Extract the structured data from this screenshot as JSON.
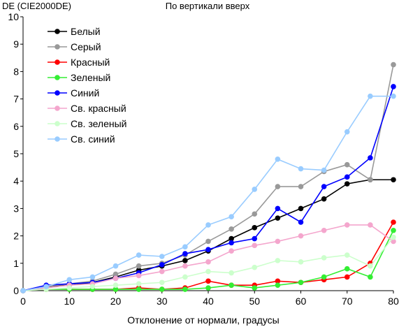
{
  "chart_data": {
    "type": "line",
    "title": "По вертикали вверх",
    "xlabel": "Отклонение от нормали, градусы",
    "ylabel": "DE (CIE2000DE)",
    "xlim": [
      0,
      80
    ],
    "ylim": [
      0,
      10
    ],
    "x_ticks": [
      0,
      10,
      20,
      30,
      40,
      50,
      60,
      70,
      80
    ],
    "y_ticks": [
      0,
      1,
      2,
      3,
      4,
      5,
      6,
      7,
      8,
      9,
      10
    ],
    "grid": false,
    "legend_position": "top-left",
    "x": [
      0,
      5,
      10,
      15,
      20,
      25,
      30,
      35,
      40,
      45,
      50,
      55,
      60,
      65,
      70,
      75,
      80
    ],
    "series": [
      {
        "name": "Белый",
        "color": "#000000",
        "values": [
          0,
          0.15,
          0.2,
          0.3,
          0.5,
          0.75,
          0.9,
          1.1,
          1.45,
          1.9,
          2.3,
          2.65,
          3.0,
          3.35,
          3.9,
          4.05,
          4.05
        ]
      },
      {
        "name": "Серый",
        "color": "#999999",
        "values": [
          0,
          0.15,
          0.25,
          0.35,
          0.6,
          0.9,
          1.0,
          1.3,
          1.8,
          2.25,
          2.8,
          3.8,
          3.8,
          4.35,
          4.6,
          4.05,
          8.25
        ]
      },
      {
        "name": "Красный",
        "color": "#ff0000",
        "values": [
          0,
          0.05,
          0.05,
          0.05,
          0.05,
          0.1,
          0.05,
          0.1,
          0.35,
          0.2,
          0.2,
          0.35,
          0.3,
          0.4,
          0.5,
          1.0,
          2.5
        ]
      },
      {
        "name": "Зеленый",
        "color": "#33ee33",
        "values": [
          0,
          0.05,
          0.05,
          0.05,
          0.05,
          0.05,
          0.05,
          0.05,
          0.1,
          0.2,
          0.1,
          0.2,
          0.3,
          0.5,
          0.8,
          0.5,
          2.2
        ]
      },
      {
        "name": "Синий",
        "color": "#0000ff",
        "values": [
          0,
          0.2,
          0.25,
          0.3,
          0.45,
          0.65,
          0.95,
          1.35,
          1.5,
          1.75,
          1.9,
          3.0,
          2.5,
          3.8,
          4.15,
          4.85,
          7.45
        ]
      },
      {
        "name": "Св. красный",
        "color": "#f4a6cd",
        "values": [
          0,
          0.1,
          0.2,
          0.25,
          0.45,
          0.55,
          0.7,
          0.9,
          1.05,
          1.45,
          1.65,
          1.8,
          2.0,
          2.2,
          2.4,
          2.4,
          1.8
        ]
      },
      {
        "name": "Св. зеленый",
        "color": "#ccffcc",
        "values": [
          0,
          0.05,
          0.1,
          0.15,
          0.2,
          0.25,
          0.3,
          0.5,
          0.7,
          0.65,
          0.85,
          1.1,
          1.05,
          1.2,
          1.3,
          0.9,
          1.95
        ]
      },
      {
        "name": "Св. синий",
        "color": "#99ccff",
        "values": [
          0,
          0.15,
          0.4,
          0.5,
          0.9,
          1.3,
          1.25,
          1.6,
          2.4,
          2.7,
          3.7,
          4.8,
          4.45,
          4.4,
          5.8,
          7.1,
          7.1
        ]
      }
    ]
  }
}
